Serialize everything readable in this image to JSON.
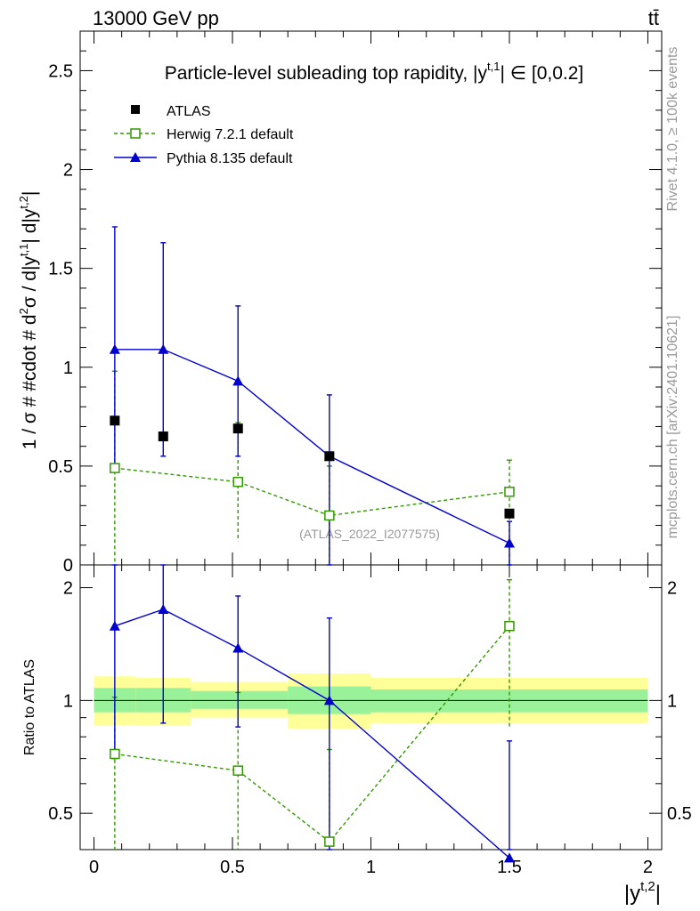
{
  "header": {
    "left": "13000 GeV pp",
    "right": "tt̄"
  },
  "side_labels": {
    "rivet": "Rivet 4.1.0, ≥ 100k events",
    "mcplots": "mcplots.cern.ch [arXiv:2401.10621]"
  },
  "chart_data": [
    {
      "type": "scatter",
      "title": "Particle-level subleading top rapidity, |y^{t,1}| ∈ [0,0.2]",
      "title_main": "Particle-level subleading top rapidity, |y",
      "title_sup": "t,1",
      "title_tail": "| ∈ [0,0.2]",
      "ylabel": "1 / σ # #cdot # d²σ / d|y^{t,1}| d|y^{t,2}|",
      "ylabel_parts": [
        "1 / σ # #cdot # d",
        "2",
        "σ / d|y",
        "t,1",
        "| d|y",
        "t,2",
        "|"
      ],
      "xlim": [
        -0.05,
        2.05
      ],
      "ylim": [
        0,
        2.7
      ],
      "yticks": [
        0.5,
        1,
        1.5,
        2,
        2.5
      ],
      "ytick_labels": [
        "0.5",
        "1",
        "1.5",
        "2",
        "2.5"
      ],
      "y0_label": "0",
      "watermark": "(ATLAS_2022_I2077575)",
      "legend": [
        "ATLAS",
        "Herwig 7.2.1 default",
        "Pythia 8.135 default"
      ],
      "series": [
        {
          "name": "ATLAS",
          "color": "#000000",
          "x": [
            0.075,
            0.25,
            0.52,
            0.85,
            1.5
          ],
          "y": [
            0.73,
            0.65,
            0.69,
            0.55,
            0.26
          ]
        },
        {
          "name": "Herwig 7.2.1 default",
          "color": "#339900",
          "x": [
            0.075,
            0.52,
            0.85,
            1.5
          ],
          "y": [
            0.49,
            0.42,
            0.25,
            0.37
          ],
          "err_up": [
            0.49,
            0.3,
            0.25,
            0.16
          ],
          "err_down": [
            0.49,
            0.3,
            0.25,
            0.37
          ]
        },
        {
          "name": "Pythia 8.135 default",
          "color": "#0000cc",
          "x": [
            0.075,
            0.25,
            0.52,
            0.85,
            1.5
          ],
          "y": [
            1.09,
            1.09,
            0.93,
            0.55,
            0.11
          ],
          "err_up": [
            0.62,
            0.54,
            0.38,
            0.31,
            0.11
          ],
          "err_down": [
            0.62,
            0.54,
            0.38,
            0.55,
            0.11
          ]
        }
      ]
    },
    {
      "type": "scatter",
      "ylabel": "Ratio to ATLAS",
      "xlabel": "|y^{t,2}|",
      "xlabel_main": "|y",
      "xlabel_sup": "t,2",
      "xlabel_tail": "|",
      "xlim": [
        -0.05,
        2.05
      ],
      "ylim": [
        0.4,
        2.3
      ],
      "yscale": "log",
      "xticks": [
        0,
        0.5,
        1,
        1.5,
        2
      ],
      "xtick_labels": [
        "0",
        "0.5",
        "1",
        "1.5",
        "2"
      ],
      "yticks": [
        0.5,
        1,
        2
      ],
      "ytick_labels": [
        "0.5",
        "1",
        "2"
      ],
      "bands": [
        {
          "x0": 0.0,
          "x1": 0.15,
          "inner": [
            0.93,
            1.08
          ],
          "outer": [
            0.86,
            1.16
          ]
        },
        {
          "x0": 0.15,
          "x1": 0.35,
          "inner": [
            0.93,
            1.08
          ],
          "outer": [
            0.86,
            1.15
          ]
        },
        {
          "x0": 0.35,
          "x1": 0.7,
          "inner": [
            0.95,
            1.06
          ],
          "outer": [
            0.9,
            1.12
          ]
        },
        {
          "x0": 0.7,
          "x1": 1.0,
          "inner": [
            0.92,
            1.09
          ],
          "outer": [
            0.84,
            1.18
          ]
        },
        {
          "x0": 1.0,
          "x1": 2.0,
          "inner": [
            0.93,
            1.07
          ],
          "outer": [
            0.87,
            1.15
          ]
        }
      ],
      "series": [
        {
          "name": "Herwig 7.2.1 default",
          "color": "#339900",
          "x": [
            0.075,
            0.52,
            0.85,
            1.5
          ],
          "y": [
            0.72,
            0.65,
            0.42,
            1.58
          ],
          "err_up": [
            0.3,
            0.4,
            0.32,
            0.52
          ],
          "err_down": [
            0.4,
            0.25,
            0.1,
            0.74
          ]
        },
        {
          "name": "Pythia 8.135 default",
          "color": "#0000cc",
          "x": [
            0.075,
            0.25,
            0.52,
            0.85,
            1.5
          ],
          "y": [
            1.58,
            1.75,
            1.38,
            1.0,
            0.38
          ],
          "err_up": [
            0.72,
            0.6,
            0.52,
            0.66,
            0.4
          ],
          "err_down": [
            0.88,
            0.88,
            0.53,
            0.6,
            0.05
          ]
        }
      ]
    }
  ]
}
